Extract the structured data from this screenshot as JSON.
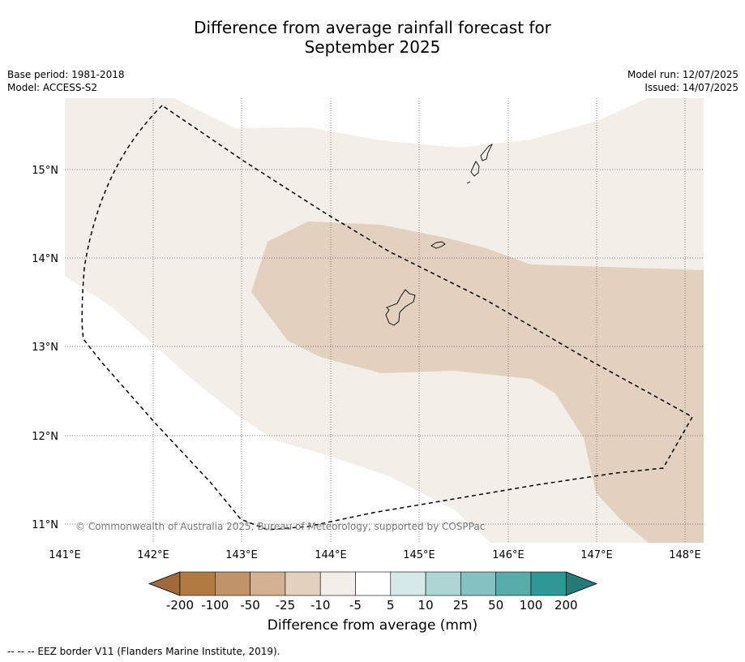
{
  "title_line1": "Difference from average rainfall forecast for",
  "title_line2": "September 2025",
  "meta": {
    "base_period": "Base period: 1981-2018",
    "model": "Model: ACCESS-S2",
    "model_run": "Model run: 12/07/2025",
    "issued": "Issued: 14/07/2025"
  },
  "map": {
    "lon_ticks": [
      "141°E",
      "142°E",
      "143°E",
      "144°E",
      "145°E",
      "146°E",
      "147°E",
      "148°E"
    ],
    "lat_ticks": [
      "15°N",
      "14°N",
      "13°N",
      "12°N",
      "11°N"
    ],
    "copyright": "© Commonwealth of Australia 2025, Bureau of Meteorology, supported by COSPPac",
    "colors": {
      "class_-10_-5": "#f4eee8",
      "class_-25_-10": "#e3d1c0",
      "eez_line": "#000000",
      "grid": "#555555"
    }
  },
  "colorbar": {
    "title": "Difference from average (mm)",
    "tick_labels": [
      "-200",
      "-100",
      "-50",
      "-25",
      "-10",
      "-5",
      "5",
      "10",
      "25",
      "50",
      "100",
      "200"
    ],
    "colors": [
      "#a0693a",
      "#b07a42",
      "#c09468",
      "#d4b192",
      "#e3d1c0",
      "#f4eee8",
      "#ffffff",
      "#d4e9e8",
      "#acd5d3",
      "#84c1c0",
      "#58acaa",
      "#2e9897",
      "#267a78"
    ]
  },
  "footer": "-- -- -- EEZ border V11 (Flanders Marine Institute, 2019)."
}
